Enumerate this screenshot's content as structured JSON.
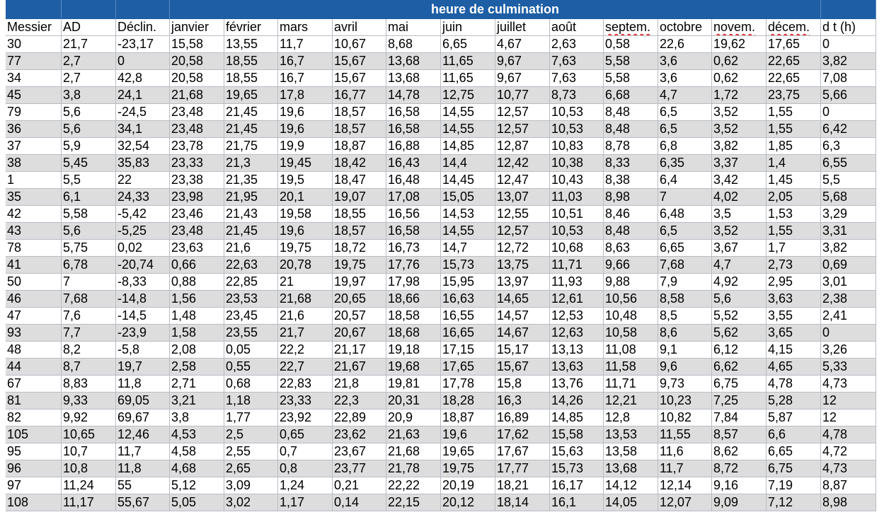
{
  "header": {
    "title": "heure de culmination",
    "columns": [
      "Messier",
      "AD",
      "Déclin.",
      "janvier",
      "février",
      "mars",
      "avril",
      "mai",
      "juin",
      "juillet",
      "août",
      "septem.",
      "octobre",
      "novem.",
      "décem.",
      "d t (h)"
    ]
  },
  "table": {
    "rows": [
      [
        "30",
        "21,7",
        "-23,17",
        "15,58",
        "13,55",
        "11,7",
        "10,67",
        "8,68",
        "6,65",
        "4,67",
        "2,63",
        "0,58",
        "22,6",
        "19,62",
        "17,65",
        "0"
      ],
      [
        "77",
        "2,7",
        "0",
        "20,58",
        "18,55",
        "16,7",
        "15,67",
        "13,68",
        "11,65",
        "9,67",
        "7,63",
        "5,58",
        "3,6",
        "0,62",
        "22,65",
        "3,82"
      ],
      [
        "34",
        "2,7",
        "42,8",
        "20,58",
        "18,55",
        "16,7",
        "15,67",
        "13,68",
        "11,65",
        "9,67",
        "7,63",
        "5,58",
        "3,6",
        "0,62",
        "22,65",
        "7,08"
      ],
      [
        "45",
        "3,8",
        "24,1",
        "21,68",
        "19,65",
        "17,8",
        "16,77",
        "14,78",
        "12,75",
        "10,77",
        "8,73",
        "6,68",
        "4,7",
        "1,72",
        "23,75",
        "5,66"
      ],
      [
        "79",
        "5,6",
        "-24,5",
        "23,48",
        "21,45",
        "19,6",
        "18,57",
        "16,58",
        "14,55",
        "12,57",
        "10,53",
        "8,48",
        "6,5",
        "3,52",
        "1,55",
        "0"
      ],
      [
        "36",
        "5,6",
        "34,1",
        "23,48",
        "21,45",
        "19,6",
        "18,57",
        "16,58",
        "14,55",
        "12,57",
        "10,53",
        "8,48",
        "6,5",
        "3,52",
        "1,55",
        "6,42"
      ],
      [
        "37",
        "5,9",
        "32,54",
        "23,78",
        "21,75",
        "19,9",
        "18,87",
        "16,88",
        "14,85",
        "12,87",
        "10,83",
        "8,78",
        "6,8",
        "3,82",
        "1,85",
        "6,3"
      ],
      [
        "38",
        "5,45",
        "35,83",
        "23,33",
        "21,3",
        "19,45",
        "18,42",
        "16,43",
        "14,4",
        "12,42",
        "10,38",
        "8,33",
        "6,35",
        "3,37",
        "1,4",
        "6,55"
      ],
      [
        "1",
        "5,5",
        "22",
        "23,38",
        "21,35",
        "19,5",
        "18,47",
        "16,48",
        "14,45",
        "12,47",
        "10,43",
        "8,38",
        "6,4",
        "3,42",
        "1,45",
        "5,5"
      ],
      [
        "35",
        "6,1",
        "24,33",
        "23,98",
        "21,95",
        "20,1",
        "19,07",
        "17,08",
        "15,05",
        "13,07",
        "11,03",
        "8,98",
        "7",
        "4,02",
        "2,05",
        "5,68"
      ],
      [
        "42",
        "5,58",
        "-5,42",
        "23,46",
        "21,43",
        "19,58",
        "18,55",
        "16,56",
        "14,53",
        "12,55",
        "10,51",
        "8,46",
        "6,48",
        "3,5",
        "1,53",
        "3,29"
      ],
      [
        "43",
        "5,6",
        "-5,25",
        "23,48",
        "21,45",
        "19,6",
        "18,57",
        "16,58",
        "14,55",
        "12,57",
        "10,53",
        "8,48",
        "6,5",
        "3,52",
        "1,55",
        "3,31"
      ],
      [
        "78",
        "5,75",
        "0,02",
        "23,63",
        "21,6",
        "19,75",
        "18,72",
        "16,73",
        "14,7",
        "12,72",
        "10,68",
        "8,63",
        "6,65",
        "3,67",
        "1,7",
        "3,82"
      ],
      [
        "41",
        "6,78",
        "-20,74",
        "0,66",
        "22,63",
        "20,78",
        "19,75",
        "17,76",
        "15,73",
        "13,75",
        "11,71",
        "9,66",
        "7,68",
        "4,7",
        "2,73",
        "0,69"
      ],
      [
        "50",
        "7",
        "-8,33",
        "0,88",
        "22,85",
        "21",
        "19,97",
        "17,98",
        "15,95",
        "13,97",
        "11,93",
        "9,88",
        "7,9",
        "4,92",
        "2,95",
        "3,01"
      ],
      [
        "46",
        "7,68",
        "-14,8",
        "1,56",
        "23,53",
        "21,68",
        "20,65",
        "18,66",
        "16,63",
        "14,65",
        "12,61",
        "10,56",
        "8,58",
        "5,6",
        "3,63",
        "2,38"
      ],
      [
        "47",
        "7,6",
        "-14,5",
        "1,48",
        "23,45",
        "21,6",
        "20,57",
        "18,58",
        "16,55",
        "14,57",
        "12,53",
        "10,48",
        "8,5",
        "5,52",
        "3,55",
        "2,41"
      ],
      [
        "93",
        "7,7",
        "-23,9",
        "1,58",
        "23,55",
        "21,7",
        "20,67",
        "18,68",
        "16,65",
        "14,67",
        "12,63",
        "10,58",
        "8,6",
        "5,62",
        "3,65",
        "0"
      ],
      [
        "48",
        "8,2",
        "-5,8",
        "2,08",
        "0,05",
        "22,2",
        "21,17",
        "19,18",
        "17,15",
        "15,17",
        "13,13",
        "11,08",
        "9,1",
        "6,12",
        "4,15",
        "3,26"
      ],
      [
        "44",
        "8,7",
        "19,7",
        "2,58",
        "0,55",
        "22,7",
        "21,67",
        "19,68",
        "17,65",
        "15,67",
        "13,63",
        "11,58",
        "9,6",
        "6,62",
        "4,65",
        "5,33"
      ],
      [
        "67",
        "8,83",
        "11,8",
        "2,71",
        "0,68",
        "22,83",
        "21,8",
        "19,81",
        "17,78",
        "15,8",
        "13,76",
        "11,71",
        "9,73",
        "6,75",
        "4,78",
        "4,73"
      ],
      [
        "81",
        "9,33",
        "69,05",
        "3,21",
        "1,18",
        "23,33",
        "22,3",
        "20,31",
        "18,28",
        "16,3",
        "14,26",
        "12,21",
        "10,23",
        "7,25",
        "5,28",
        "12"
      ],
      [
        "82",
        "9,92",
        "69,67",
        "3,8",
        "1,77",
        "23,92",
        "22,89",
        "20,9",
        "18,87",
        "16,89",
        "14,85",
        "12,8",
        "10,82",
        "7,84",
        "5,87",
        "12"
      ],
      [
        "105",
        "10,65",
        "12,46",
        "4,53",
        "2,5",
        "0,65",
        "23,62",
        "21,63",
        "19,6",
        "17,62",
        "15,58",
        "13,53",
        "11,55",
        "8,57",
        "6,6",
        "4,78"
      ],
      [
        "95",
        "10,7",
        "11,7",
        "4,58",
        "2,55",
        "0,7",
        "23,67",
        "21,68",
        "19,65",
        "17,67",
        "15,63",
        "13,58",
        "11,6",
        "8,62",
        "6,65",
        "4,72"
      ],
      [
        "96",
        "10,8",
        "11,8",
        "4,68",
        "2,65",
        "0,8",
        "23,77",
        "21,78",
        "19,75",
        "17,77",
        "15,73",
        "13,68",
        "11,7",
        "8,72",
        "6,75",
        "4,73"
      ],
      [
        "97",
        "11,24",
        "55",
        "5,12",
        "3,09",
        "1,24",
        "0,21",
        "22,22",
        "20,19",
        "18,21",
        "16,17",
        "14,12",
        "12,14",
        "9,16",
        "7,19",
        "8,87"
      ],
      [
        "108",
        "11,17",
        "55,67",
        "5,05",
        "3,02",
        "1,17",
        "0,14",
        "22,15",
        "20,12",
        "18,14",
        "16,1",
        "14,05",
        "12,07",
        "9,09",
        "7,12",
        "8,98"
      ]
    ]
  }
}
